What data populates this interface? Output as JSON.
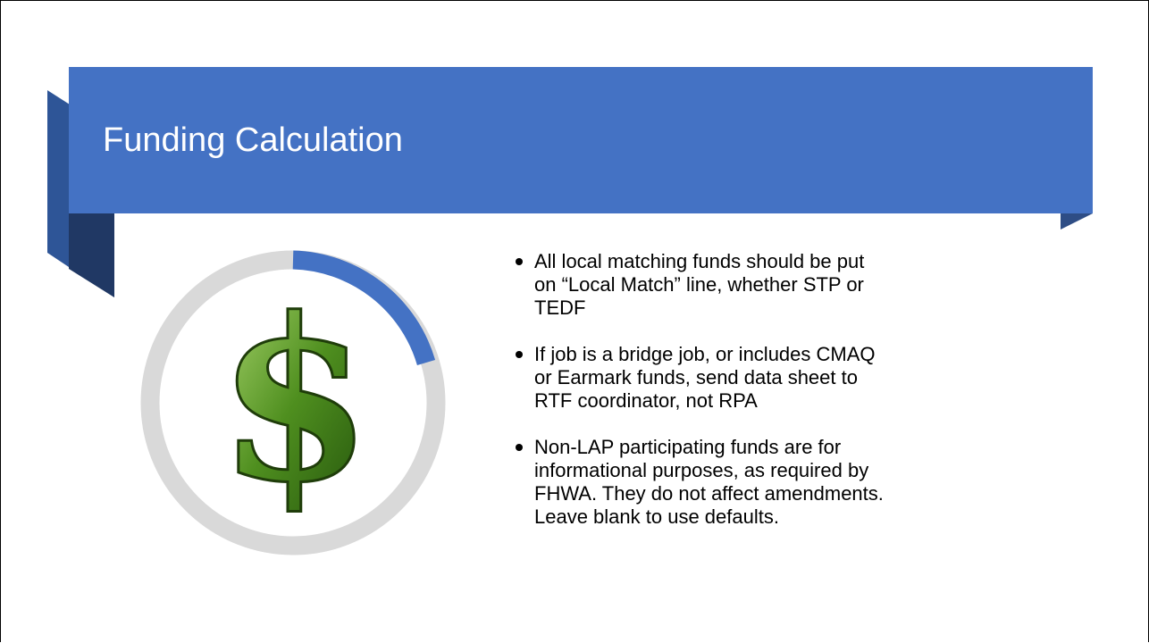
{
  "header": {
    "title": "Funding Calculation"
  },
  "illustration": {
    "symbol": "$"
  },
  "bullets": [
    {
      "lines": [
        "All local matching funds should be put",
        "on “Local Match” line, whether STP or",
        "TEDF"
      ]
    },
    {
      "lines": [
        "If job is a bridge job, or includes CMAQ",
        "or Earmark funds, send data sheet to",
        "RTF coordinator, not RPA"
      ]
    },
    {
      "lines": [
        "Non-LAP participating funds are for",
        "informational purposes, as required by",
        "FHWA. They do not affect amendments.",
        "Leave blank to use defaults."
      ]
    }
  ]
}
